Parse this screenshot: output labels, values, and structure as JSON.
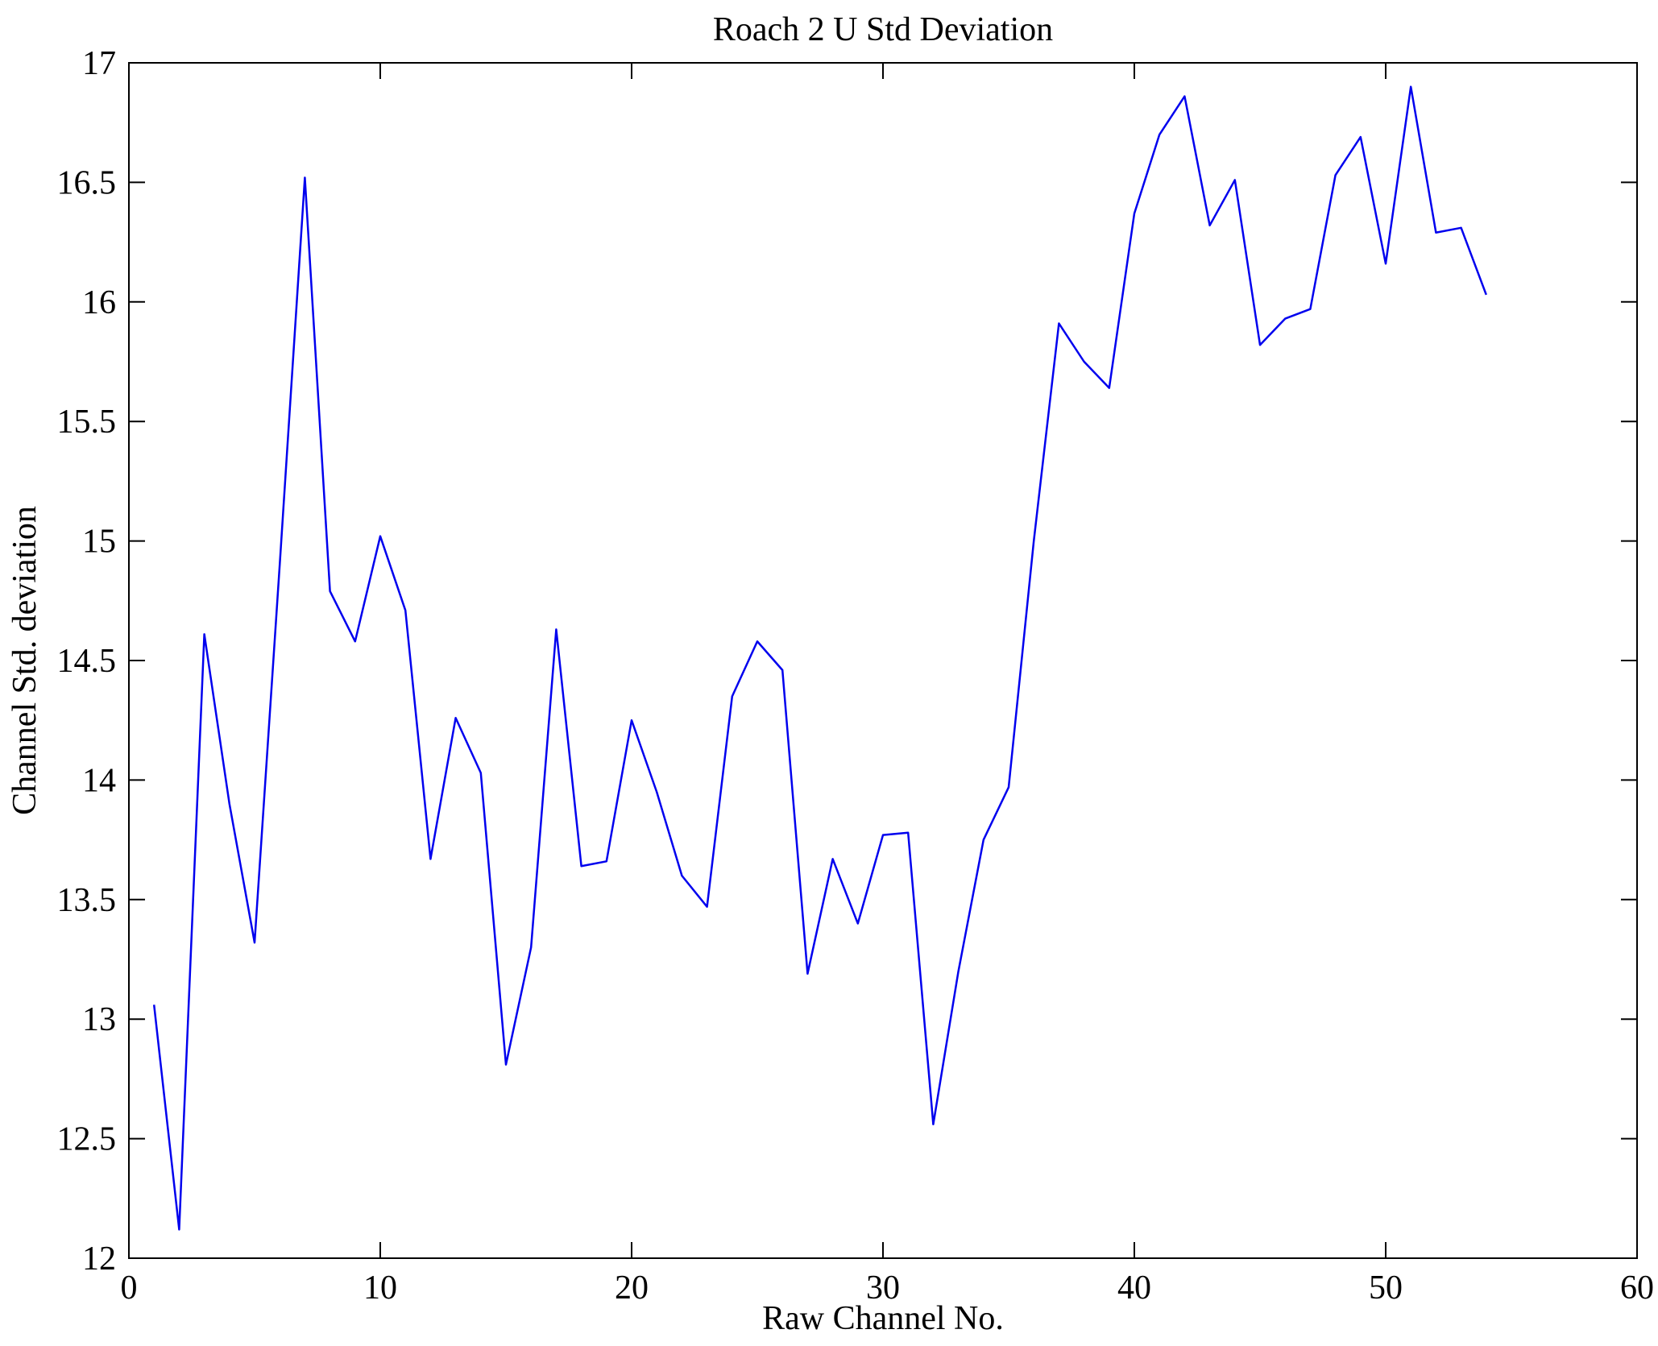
{
  "chart_data": {
    "type": "line",
    "title": "Roach 2 U Std Deviation",
    "xlabel": "Raw Channel No.",
    "ylabel": "Channel Std. deviation",
    "xlim": [
      0,
      60
    ],
    "ylim": [
      12,
      17
    ],
    "xticks": [
      0,
      10,
      20,
      30,
      40,
      50,
      60
    ],
    "yticks": [
      12,
      12.5,
      13,
      13.5,
      14,
      14.5,
      15,
      15.5,
      16,
      16.5,
      17
    ],
    "grid": "off",
    "legend": "none",
    "line_color": "#0000ee",
    "axis_color": "#000000",
    "background": "#ffffff",
    "x": [
      1,
      2,
      3,
      4,
      5,
      6,
      7,
      8,
      9,
      10,
      11,
      12,
      13,
      14,
      15,
      16,
      17,
      18,
      19,
      20,
      21,
      22,
      23,
      24,
      25,
      26,
      27,
      28,
      29,
      30,
      31,
      32,
      33,
      34,
      35,
      36,
      37,
      38,
      39,
      40,
      41,
      42,
      43,
      44,
      45,
      46,
      47,
      48,
      49,
      50,
      51,
      52,
      53,
      54
    ],
    "series": [
      {
        "name": "Channel Std. deviation",
        "values": [
          13.06,
          12.12,
          14.61,
          13.9,
          13.32,
          14.9,
          16.52,
          14.79,
          14.58,
          15.02,
          14.71,
          13.67,
          14.26,
          14.03,
          12.81,
          13.3,
          14.63,
          13.64,
          13.66,
          14.25,
          13.95,
          13.6,
          13.47,
          14.35,
          14.58,
          14.46,
          13.19,
          13.67,
          13.4,
          13.77,
          13.78,
          12.56,
          13.2,
          13.75,
          13.97,
          15.0,
          15.91,
          15.75,
          15.64,
          16.37,
          16.7,
          16.86,
          16.32,
          16.51,
          15.82,
          15.93,
          15.97,
          16.53,
          16.69,
          16.16,
          16.9,
          16.29,
          16.31,
          16.03
        ]
      }
    ]
  }
}
